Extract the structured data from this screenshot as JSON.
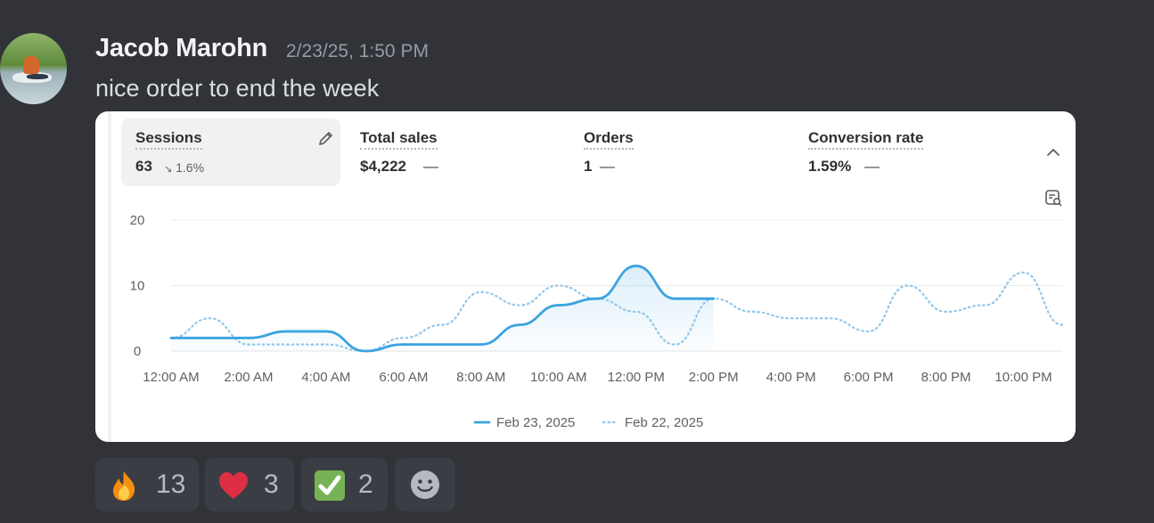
{
  "message": {
    "author": "Jacob Marohn",
    "timestamp": "2/23/25, 1:50 PM",
    "text": "nice order to end the week"
  },
  "metrics": [
    {
      "label": "Sessions",
      "value": "63",
      "change": "1.6%",
      "change_direction": "down",
      "selected": true
    },
    {
      "label": "Total sales",
      "value": "$4,222",
      "change": "—"
    },
    {
      "label": "Orders",
      "value": "1",
      "change": "—"
    },
    {
      "label": "Conversion rate",
      "value": "1.59%",
      "change": "—"
    }
  ],
  "chart_data": {
    "type": "line",
    "title": "",
    "ylim": [
      0,
      20
    ],
    "yticks": [
      0,
      10,
      20
    ],
    "xticks": [
      "12:00 AM",
      "2:00 AM",
      "4:00 AM",
      "6:00 AM",
      "8:00 AM",
      "10:00 AM",
      "12:00 PM",
      "2:00 PM",
      "4:00 PM",
      "6:00 PM",
      "8:00 PM",
      "10:00 PM"
    ],
    "x_hours_range": [
      0,
      23
    ],
    "series": [
      {
        "name": "Feb 23, 2025",
        "style": "solid",
        "color": "#3ba3e0",
        "x": [
          0,
          1,
          2,
          3,
          4,
          5,
          6,
          7,
          8,
          9,
          10,
          11,
          12,
          13,
          14
        ],
        "values": [
          2,
          2,
          2,
          3,
          3,
          0,
          1,
          1,
          1,
          4,
          7,
          8,
          13,
          8,
          8
        ]
      },
      {
        "name": "Feb 22, 2025",
        "style": "dotted",
        "color": "#8fc6ea",
        "x": [
          0,
          1,
          2,
          3,
          4,
          5,
          6,
          7,
          8,
          9,
          10,
          11,
          12,
          13,
          14,
          15,
          16,
          17,
          18,
          19,
          20,
          21,
          22,
          23
        ],
        "values": [
          2,
          5,
          1,
          1,
          1,
          0,
          2,
          4,
          9,
          7,
          10,
          8,
          6,
          1,
          8,
          6,
          5,
          5,
          3,
          10,
          6,
          7,
          12,
          4
        ]
      }
    ],
    "legend": "bottom"
  },
  "reactions": [
    {
      "emoji": "fire",
      "count": "13"
    },
    {
      "emoji": "heart",
      "count": "3"
    },
    {
      "emoji": "check",
      "count": "2"
    }
  ],
  "icons": {
    "edit": "pencil-icon",
    "collapse": "chevron-up-icon",
    "chart_search": "chart-search-icon",
    "add_reaction": "smiley-icon"
  }
}
